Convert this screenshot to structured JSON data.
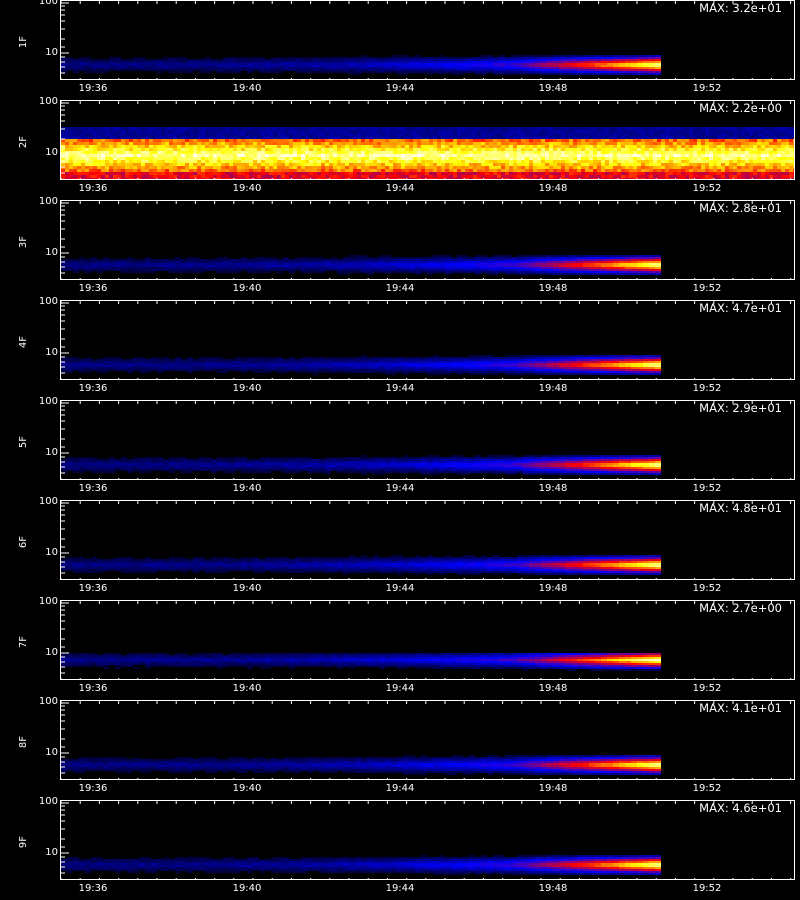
{
  "chart_data": {
    "type": "heatmap",
    "panels": [
      {
        "ylabel": "1F",
        "max_label": "MAX: 3.2e+01",
        "max_value": 32
      },
      {
        "ylabel": "2F",
        "max_label": "MAX: 2.2e+00",
        "max_value": 2.2
      },
      {
        "ylabel": "3F",
        "max_label": "MAX: 2.8e+01",
        "max_value": 28
      },
      {
        "ylabel": "4F",
        "max_label": "MAX: 4.7e+01",
        "max_value": 47
      },
      {
        "ylabel": "5F",
        "max_label": "MAX: 2.9e+01",
        "max_value": 29
      },
      {
        "ylabel": "6F",
        "max_label": "MAX: 4.8e+01",
        "max_value": 48
      },
      {
        "ylabel": "7F",
        "max_label": "MAX: 2.7e+00",
        "max_value": 2.7
      },
      {
        "ylabel": "8F",
        "max_label": "MAX: 4.1e+01",
        "max_value": 41
      },
      {
        "ylabel": "9F",
        "max_label": "MAX: 4.6e+01",
        "max_value": 46
      }
    ],
    "x_tick_labels": [
      "19:36",
      "19:40",
      "19:44",
      "19:48",
      "19:52"
    ],
    "y_tick_labels": [
      "100",
      "10"
    ],
    "y_scale": "log",
    "colormap": [
      "#000000",
      "#0000ff",
      "#ff0000",
      "#ffff00",
      "#ffffff"
    ]
  }
}
